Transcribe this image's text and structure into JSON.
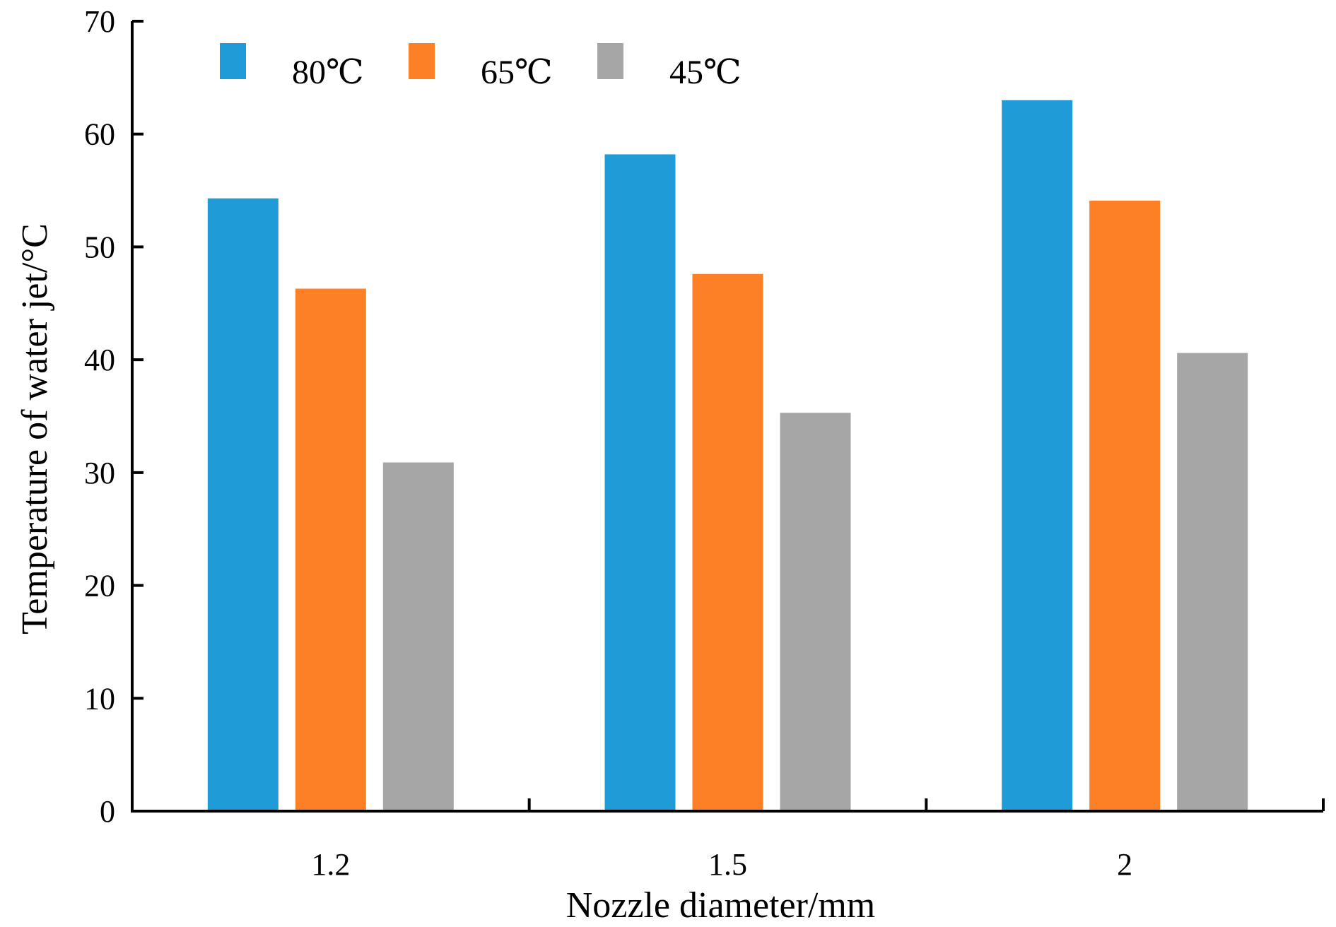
{
  "chart_data": {
    "type": "bar",
    "title": "",
    "xlabel": "Nozzle diameter/mm",
    "ylabel": "Temperature of water jet/°C",
    "categories": [
      "1.2",
      "1.5",
      "2"
    ],
    "series": [
      {
        "name": "80℃",
        "color": "#1f9bd7",
        "values": [
          54.3,
          58.2,
          63.0
        ]
      },
      {
        "name": "65℃",
        "color": "#fd7f26",
        "values": [
          46.3,
          47.6,
          54.1
        ]
      },
      {
        "name": "45℃",
        "color": "#a6a6a6",
        "values": [
          30.9,
          35.3,
          40.6
        ]
      }
    ],
    "ylim": [
      0,
      70
    ],
    "yticks": [
      0,
      10,
      20,
      30,
      40,
      50,
      60,
      70
    ],
    "grid": false,
    "legend": {
      "position": "top",
      "orientation": "horizontal"
    }
  }
}
